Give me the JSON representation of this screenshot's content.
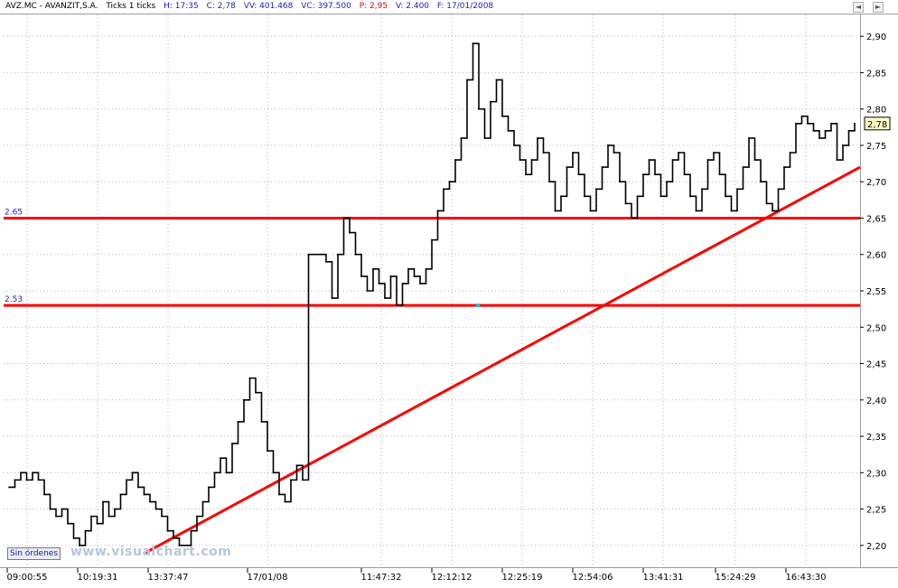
{
  "header": {
    "symbol": "AVZ.MC - AVANZIT,S.A.",
    "interval": "Ticks 1 ticks",
    "hour": "H: 17:35",
    "close": "C: 2,78",
    "vv": "VV: 401.468",
    "vc": "VC: 397.500",
    "price_label": "P: 2,95",
    "volume": "V: 2.400",
    "date": "F: 17/01/2008"
  },
  "controls": {
    "scroll_left": "◄",
    "scroll_right": "►"
  },
  "footer": {
    "orders_button": "Sin órdenes",
    "watermark": "www.visualchart.com"
  },
  "colors": {
    "price_line": "#000000",
    "support_lines": "#ff0000",
    "trendline": "#ff0000",
    "grid": "#b4b4b4",
    "level_labels": "#1a1ac8"
  },
  "chart_data": {
    "type": "line",
    "title": "",
    "xlabel": "",
    "ylabel": "",
    "ylim": [
      2.17,
      2.93
    ],
    "y_ticks": [
      "2,20",
      "2,25",
      "2,30",
      "2,35",
      "2,40",
      "2,45",
      "2,50",
      "2,55",
      "2,60",
      "2,65",
      "2,70",
      "2,75",
      "2,80",
      "2,85",
      "2,90"
    ],
    "x_ticks": [
      "09:00:55",
      "10:19:31",
      "13:37:47",
      "17/01/08",
      "11:47:32",
      "12:12:12",
      "12:25:19",
      "12:54:06",
      "13:41:31",
      "15:24:29",
      "16:43:30"
    ],
    "last_price_label": "2,78",
    "grid": true,
    "series": [
      {
        "values": [
          2.28,
          2.29,
          2.3,
          2.29,
          2.3,
          2.29,
          2.27,
          2.25,
          2.24,
          2.25,
          2.23,
          2.21,
          2.2,
          2.22,
          2.24,
          2.23,
          2.26,
          2.24,
          2.25,
          2.27,
          2.29,
          2.3,
          2.28,
          2.27,
          2.26,
          2.25,
          2.24,
          2.22,
          2.21,
          2.2,
          2.2,
          2.22,
          2.24,
          2.26,
          2.28,
          2.3,
          2.32,
          2.3,
          2.34,
          2.37,
          2.4,
          2.43,
          2.41,
          2.37,
          2.33,
          2.3,
          2.27,
          2.26,
          2.29,
          2.31,
          2.29,
          2.6,
          2.6,
          2.6,
          2.59,
          2.54,
          2.6,
          2.65,
          2.63,
          2.6,
          2.57,
          2.55,
          2.58,
          2.56,
          2.54,
          2.57,
          2.53,
          2.56,
          2.58,
          2.57,
          2.56,
          2.58,
          2.62,
          2.66,
          2.69,
          2.7,
          2.73,
          2.76,
          2.84,
          2.89,
          2.8,
          2.76,
          2.81,
          2.84,
          2.79,
          2.77,
          2.75,
          2.73,
          2.71,
          2.73,
          2.76,
          2.74,
          2.7,
          2.66,
          2.68,
          2.72,
          2.74,
          2.71,
          2.68,
          2.66,
          2.69,
          2.72,
          2.75,
          2.74,
          2.7,
          2.67,
          2.65,
          2.68,
          2.71,
          2.73,
          2.71,
          2.68,
          2.7,
          2.73,
          2.74,
          2.71,
          2.68,
          2.66,
          2.69,
          2.73,
          2.74,
          2.71,
          2.68,
          2.66,
          2.69,
          2.72,
          2.76,
          2.73,
          2.7,
          2.67,
          2.66,
          2.69,
          2.72,
          2.74,
          2.78,
          2.79,
          2.78,
          2.77,
          2.76,
          2.77,
          2.78,
          2.73,
          2.75,
          2.77,
          2.78
        ]
      }
    ],
    "horizontal_lines": [
      {
        "label": "2.65",
        "value": 2.65
      },
      {
        "label": "2.53",
        "value": 2.53
      }
    ],
    "trendline": {
      "from": {
        "x_index": 22,
        "y": 2.19
      },
      "to": {
        "x_index": 148,
        "y": 2.72
      }
    }
  }
}
